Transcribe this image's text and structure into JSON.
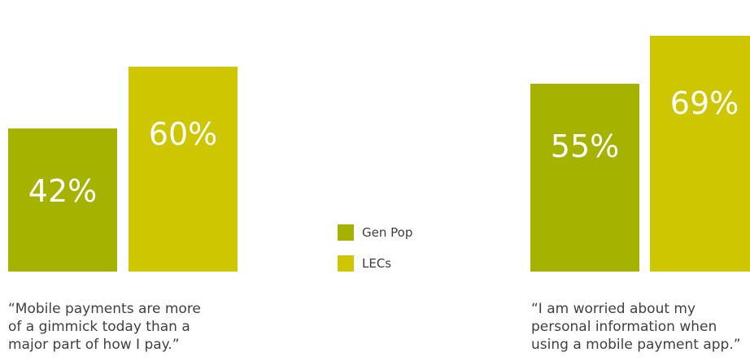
{
  "chart_data": [
    {
      "type": "bar",
      "categories": [
        "Gen Pop",
        "LECs"
      ],
      "values": [
        42,
        60
      ],
      "value_labels": [
        "42%",
        "60%"
      ],
      "caption_lines": [
        "“Mobile payments are more",
        "of a gimmick today than a",
        "major part of how I pay.”"
      ],
      "ylim": [
        0,
        75
      ]
    },
    {
      "type": "bar",
      "categories": [
        "Gen Pop",
        "LECs"
      ],
      "values": [
        55,
        69
      ],
      "value_labels": [
        "55%",
        "69%"
      ],
      "caption_lines": [
        "“I am worried about my",
        "personal information when",
        "using a mobile payment app.”"
      ],
      "ylim": [
        0,
        75
      ]
    }
  ],
  "legend": [
    {
      "label": "Gen Pop",
      "color": "#a5b200"
    },
    {
      "label": "LECs",
      "color": "#cdc600"
    }
  ]
}
